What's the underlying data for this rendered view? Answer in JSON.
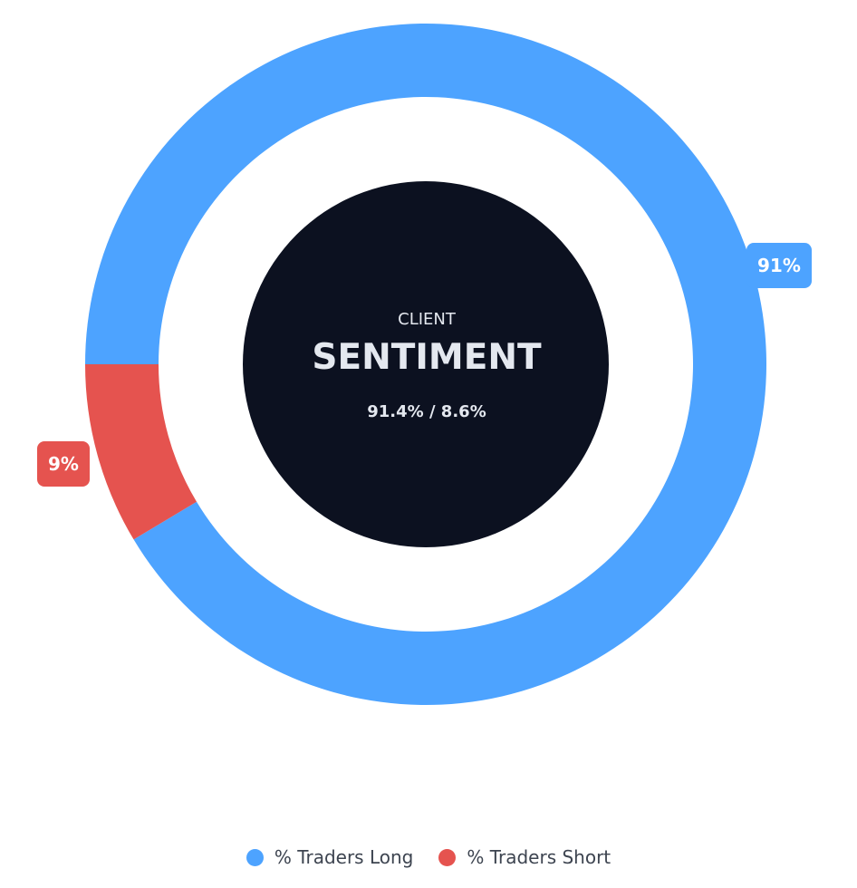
{
  "chart_data": {
    "type": "pie",
    "categories": [
      "% Traders Long",
      "% Traders Short"
    ],
    "values": [
      91.4,
      8.6
    ],
    "data_labels": [
      "91%",
      "9%"
    ],
    "colors": [
      "#4da3ff",
      "#e5534f"
    ],
    "legend_position": "bottom"
  },
  "center": {
    "kicker": "CLIENT",
    "title": "SENTIMENT",
    "ratio": "91.4% / 8.6%",
    "background": "#0c1120"
  },
  "legend": {
    "items": [
      {
        "label": "% Traders Long",
        "color": "#4da3ff"
      },
      {
        "label": "% Traders Short",
        "color": "#e5534f"
      }
    ]
  }
}
